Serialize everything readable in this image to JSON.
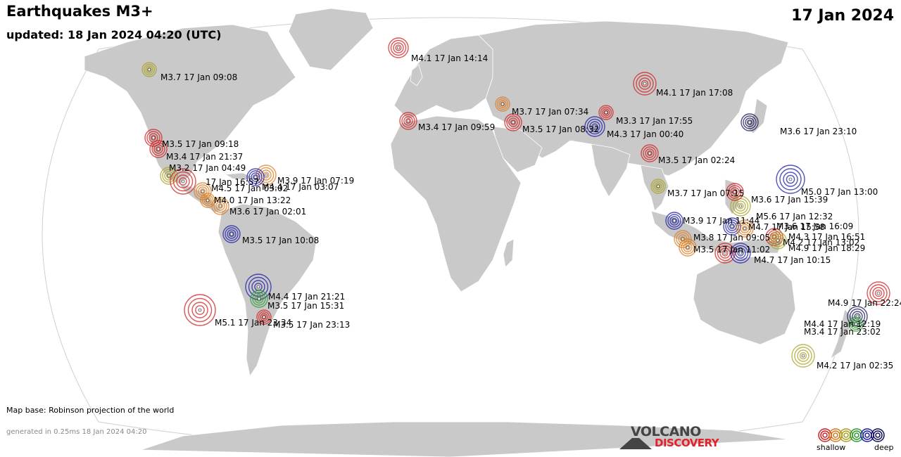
{
  "header": {
    "title": "Earthquakes M3+",
    "updated": "updated: 18 Jan 2024 04:20 (UTC)",
    "date": "17 Jan 2024"
  },
  "footer": {
    "map_base": "Map base: Robinson projection of the world",
    "generated": "generated in 0.25ms 18 Jan 2024 04:20"
  },
  "logo": {
    "line1": "VOLCANO",
    "line2": "DISCOVERY"
  },
  "legend": {
    "shallow": "shallow",
    "deep": "deep",
    "colors": [
      "#d11f1f",
      "#d97a1e",
      "#a8a020",
      "#2f9a2f",
      "#1a1aa8",
      "#120f55"
    ]
  },
  "colors": {
    "land": "#c9c9c9",
    "ocean": "#ffffff",
    "border": "#ffffff",
    "shallow": "#d11f1f",
    "medium": "#d97a1e",
    "intermediate": "#a8a020",
    "deeper": "#2f9a2f",
    "deep": "#1a1aa8"
  },
  "quakes": [
    {
      "label": "M4.1  17 Jan 14:14",
      "color": "#d11f1f"
    },
    {
      "label": "M3.7  17 Jan 09:08",
      "color": "#a8a020"
    },
    {
      "label": "M4.1  17 Jan 17:08",
      "color": "#d11f1f"
    },
    {
      "label": "M3.7  17 Jan 07:34",
      "color": "#d97a1e"
    },
    {
      "label": "M3.3  17 Jan 17:55",
      "color": "#d11f1f"
    },
    {
      "label": "M4.3  17 Jan 00:40",
      "color": "#1a1aa8"
    },
    {
      "label": "M3.5  17 Jan 08:32",
      "color": "#d11f1f"
    },
    {
      "label": "M3.4  17 Jan 09:59",
      "color": "#d11f1f"
    },
    {
      "label": "M3.6  17 Jan 23:10",
      "color": "#120f55"
    },
    {
      "label": "M3.5  17 Jan 02:24",
      "color": "#d11f1f"
    },
    {
      "label": "M3.5  17 Jan 09:18",
      "color": "#d11f1f"
    },
    {
      "label": "M3.4  17 Jan 21:37",
      "color": "#d11f1f"
    },
    {
      "label": "M3.2  17 Jan 04:49",
      "color": "#a8a020"
    },
    {
      "label": "M3.9  17 Jan 07:19",
      "color": "#d97a1e"
    },
    {
      "label": "17 Jan 16:57",
      "color": "#d11f1f"
    },
    {
      "label": "M4.5  17 Jan 03:02",
      "color": "#d97a1e"
    },
    {
      "label": "M4.4  17 Jan 03:07",
      "color": "#1a1aa8"
    },
    {
      "label": "M4.0  17 Jan 13:22",
      "color": "#d97a1e"
    },
    {
      "label": "M3.6  17 Jan 02:01",
      "color": "#d97a1e"
    },
    {
      "label": "M5.0  17 Jan 13:00",
      "color": "#1a1aa8"
    },
    {
      "label": "M3.7  17 Jan 07:15",
      "color": "#a8a020"
    },
    {
      "label": "M3.6  17 Jan 15:39",
      "color": "#a8a020"
    },
    {
      "label": "M5.6  17 Jan 12:32",
      "color": "#d11f1f"
    },
    {
      "label": "M3.9  17 Jan 11:44",
      "color": "#1a1aa8"
    },
    {
      "label": "M4.7  17 Jan 15:58",
      "color": "#1a1aa8"
    },
    {
      "label": "M3.6  17 Jan 16:09",
      "color": "#d97a1e"
    },
    {
      "label": "M3.8  17 Jan 09:05",
      "color": "#d97a1e"
    },
    {
      "label": "M4.3  17 Jan 16:51",
      "color": "#d11f1f"
    },
    {
      "label": "M4.2  17 Jan 13:02",
      "color": "#a8a020"
    },
    {
      "label": "M3.5  17 Jan 11:02",
      "color": "#d97a1e"
    },
    {
      "label": "M4.9  17 Jan 18:29",
      "color": "#d11f1f"
    },
    {
      "label": "M4.7  17 Jan 10:15",
      "color": "#1a1aa8"
    },
    {
      "label": "M3.5  17 Jan 10:08",
      "color": "#1a1aa8"
    },
    {
      "label": "M4.4  17 Jan 21:21",
      "color": "#1a1aa8"
    },
    {
      "label": "M3.5  17 Jan 15:31",
      "color": "#2f9a2f"
    },
    {
      "label": "M5.1  17 Jan 23:34",
      "color": "#d11f1f"
    },
    {
      "label": "M3.5  17 Jan 23:13",
      "color": "#d11f1f"
    },
    {
      "label": "M4.9  17 Jan 22:24",
      "color": "#d11f1f"
    },
    {
      "label": "M4.4  17 Jan 12:19",
      "color": "#120f55"
    },
    {
      "label": "M3.4  17 Jan 23:02",
      "color": "#2f9a2f"
    },
    {
      "label": "M4.2  17 Jan 02:35",
      "color": "#a8a020"
    }
  ]
}
